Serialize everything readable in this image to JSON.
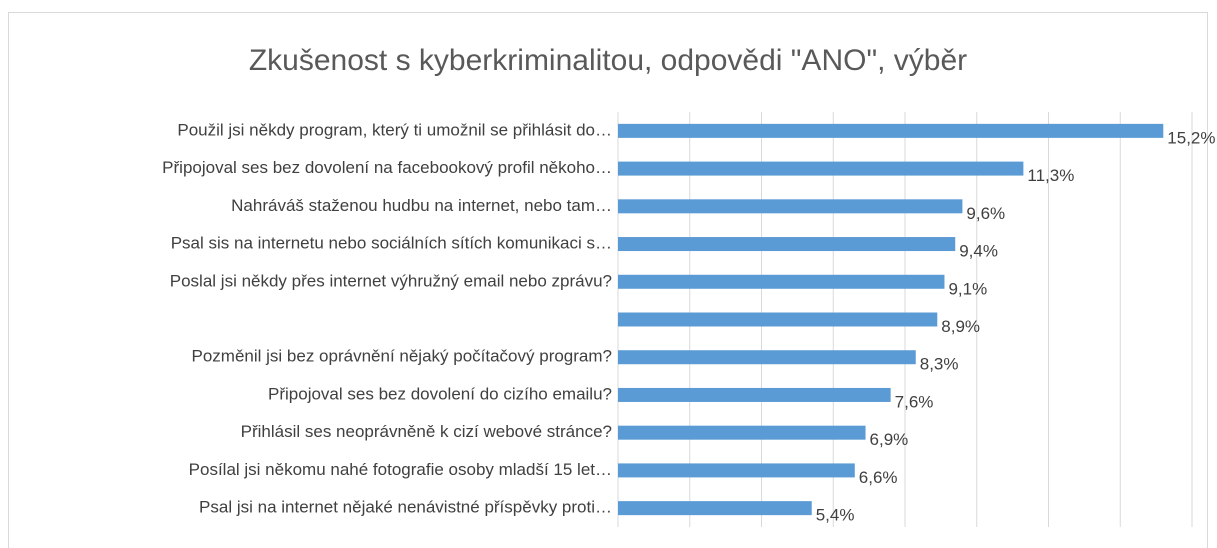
{
  "chart_data": {
    "type": "hbar",
    "title": "Zkušenost s kyberkriminalitou, odpovědi \"ANO\", výběr",
    "categories": [
      "Použil jsi někdy program, který ti umožnil se přihlásit do…",
      "Připojoval ses bez dovolení na facebookový profil někoho…",
      "Nahráváš staženou hudbu na internet, nebo tam…",
      "Psal sis na internetu nebo sociálních sítích komunikaci s…",
      "Poslal jsi někdy přes internet výhružný email nebo zprávu?",
      null,
      "Pozměnil jsi bez oprávnění nějaký počítačový program?",
      "Připojoval ses bez dovolení do cizího emailu?",
      "Přihlásil ses neoprávněně k cizí webové stránce?",
      "Posílal jsi někomu nahé fotografie osoby mladší 15 let…",
      "Psal jsi na internet nějaké nenávistné příspěvky proti…"
    ],
    "values": [
      15.2,
      11.3,
      9.6,
      9.4,
      9.1,
      8.9,
      8.3,
      7.6,
      6.9,
      6.6,
      5.4
    ],
    "value_labels": [
      "15,2%",
      "11,3%",
      "9,6%",
      "9,4%",
      "9,1%",
      "8,9%",
      "8,3%",
      "7,6%",
      "6,9%",
      "6,6%",
      "5,4%"
    ],
    "color": "#5b9bd5",
    "xlim": [
      0,
      16
    ],
    "xticks": [
      0,
      2,
      4,
      6,
      8,
      10,
      12,
      14,
      16
    ],
    "grid": true
  }
}
